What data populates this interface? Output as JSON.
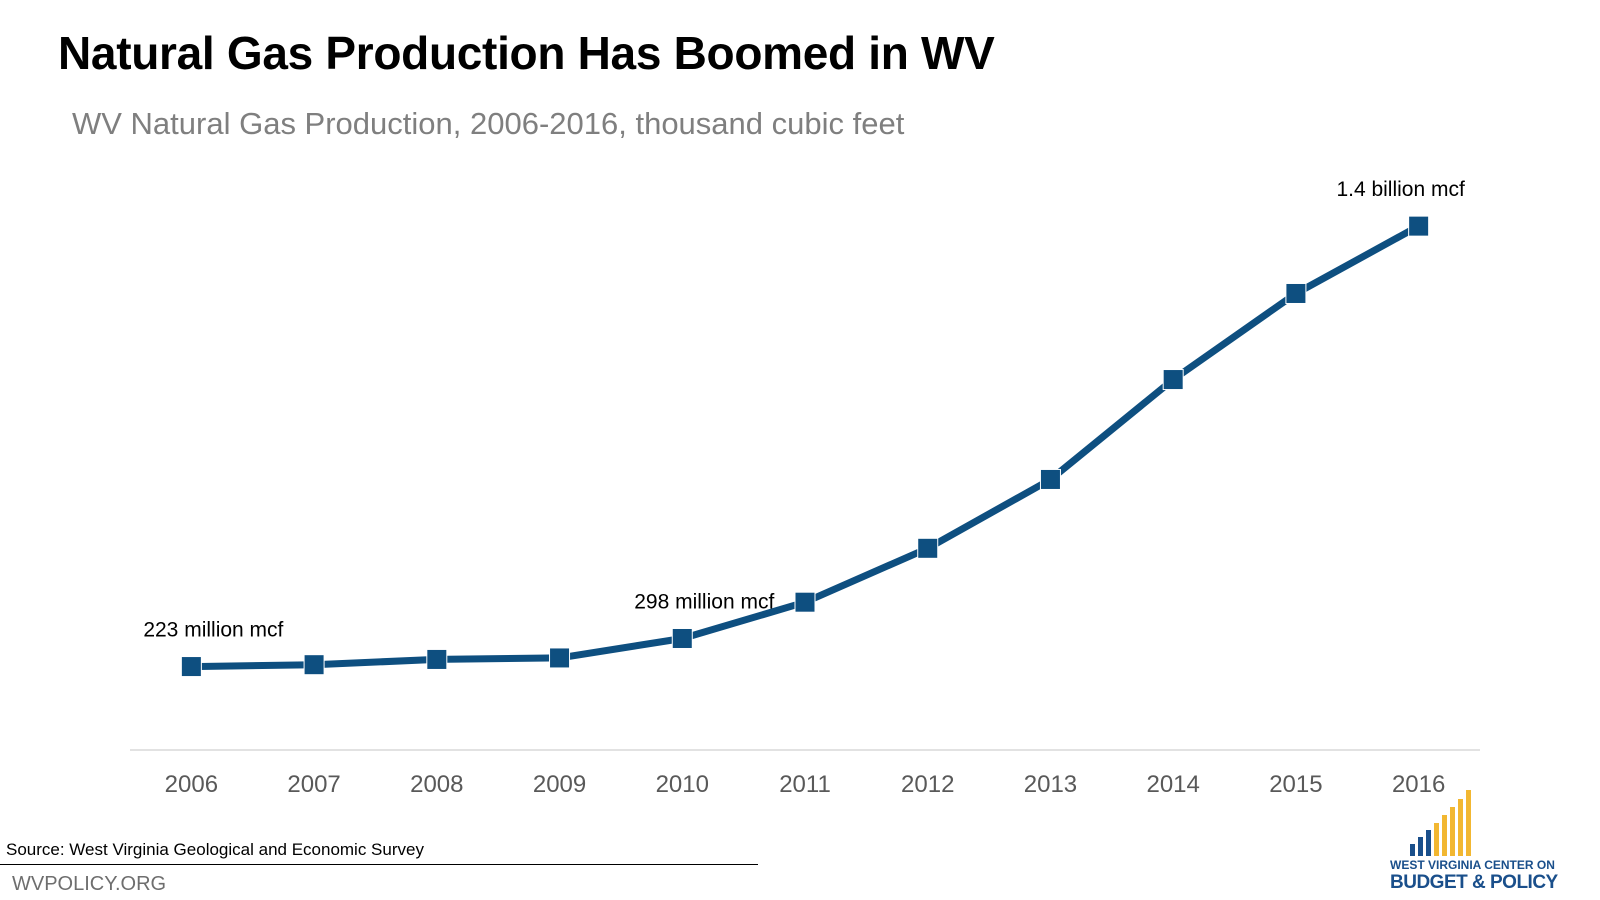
{
  "header": {
    "title": "Natural Gas Production Has Boomed in WV",
    "subtitle": "WV Natural Gas Production, 2006-2016, thousand cubic feet"
  },
  "chart_data": {
    "type": "line",
    "categories": [
      "2006",
      "2007",
      "2008",
      "2009",
      "2010",
      "2011",
      "2012",
      "2013",
      "2014",
      "2015",
      "2016"
    ],
    "series": [
      {
        "values": [
          223000000,
          228000000,
          242000000,
          246000000,
          298000000,
          395000000,
          539000000,
          723000000,
          990000000,
          1220000000,
          1400000000
        ]
      }
    ],
    "annotations": [
      {
        "category": "2006",
        "label": "223 million mcf"
      },
      {
        "category": "2010",
        "label": "298 million mcf"
      },
      {
        "category": "2016",
        "label": "1.4 billion mcf"
      }
    ],
    "ylim": [
      0,
      1550000000
    ],
    "grid": false,
    "colors": {
      "line": "#0e4f80",
      "axis": "#d9d9d9",
      "tick_label": "#595959"
    }
  },
  "footer": {
    "source": "Source: West Virginia Geological and Economic Survey",
    "site": "WVPOLICY.ORG"
  },
  "logo": {
    "line1": "WEST VIRGINIA CENTER ON",
    "line2": "BUDGET & POLICY",
    "colors": {
      "blue": "#1a4f8b",
      "gold": "#f2b731"
    }
  }
}
